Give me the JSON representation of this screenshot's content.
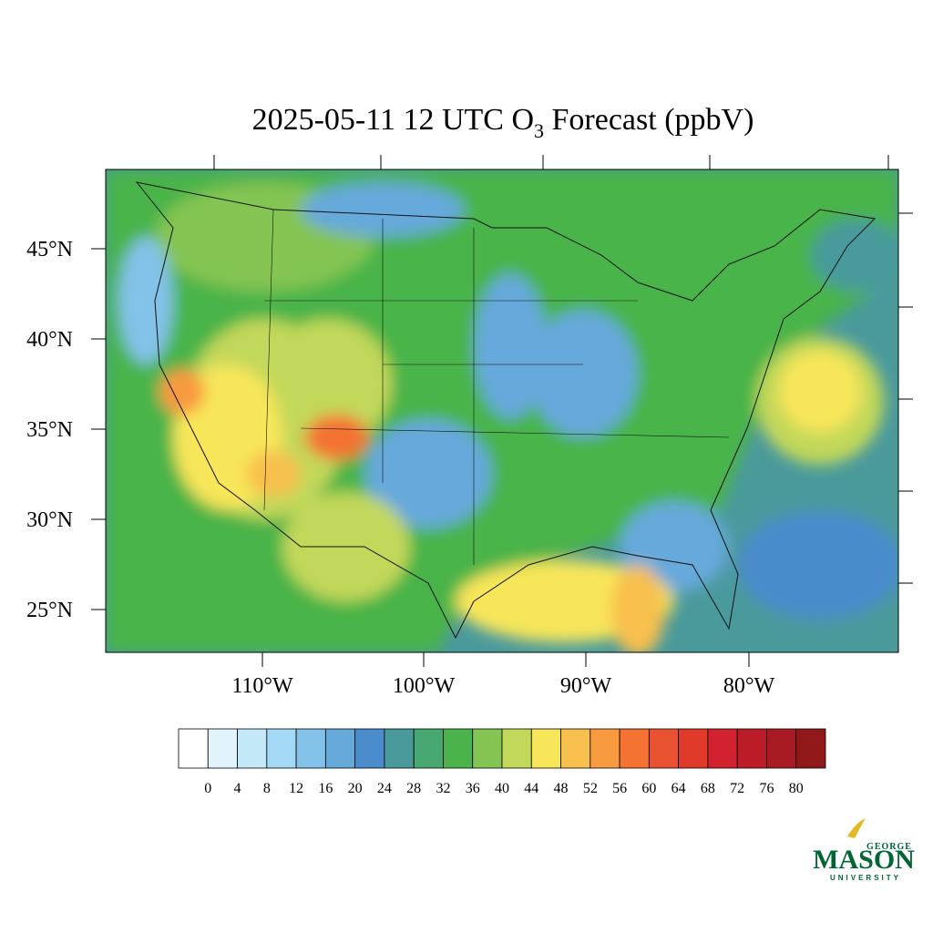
{
  "title": {
    "main": "2025-05-11 12 UTC O",
    "subscript": "3",
    "rest": " Forecast (ppbV)"
  },
  "map": {
    "lat_labels": [
      "45°N",
      "40°N",
      "35°N",
      "30°N",
      "25°N"
    ],
    "lon_labels": [
      "110°W",
      "100°W",
      "90°W",
      "80°W"
    ]
  },
  "colorbar": {
    "colors": [
      "#ffffff",
      "#e1f3fb",
      "#c3e8f8",
      "#a3d9f4",
      "#83c2e9",
      "#66a9db",
      "#4a8ccc",
      "#4a9a9c",
      "#48a872",
      "#4ab44a",
      "#84c452",
      "#c2d85a",
      "#f8e65a",
      "#f8c04e",
      "#f89a40",
      "#f47232",
      "#e8522e",
      "#e03a2a",
      "#d22230",
      "#bc1c28",
      "#a81a22",
      "#901818"
    ],
    "levels": [
      0,
      4,
      8,
      12,
      16,
      20,
      24,
      28,
      32,
      36,
      40,
      44,
      48,
      52,
      56,
      60,
      64,
      68,
      72,
      76,
      80
    ]
  },
  "logo": {
    "top": "GEORGE",
    "main": "MASON",
    "bottom": "UNIVERSITY"
  }
}
